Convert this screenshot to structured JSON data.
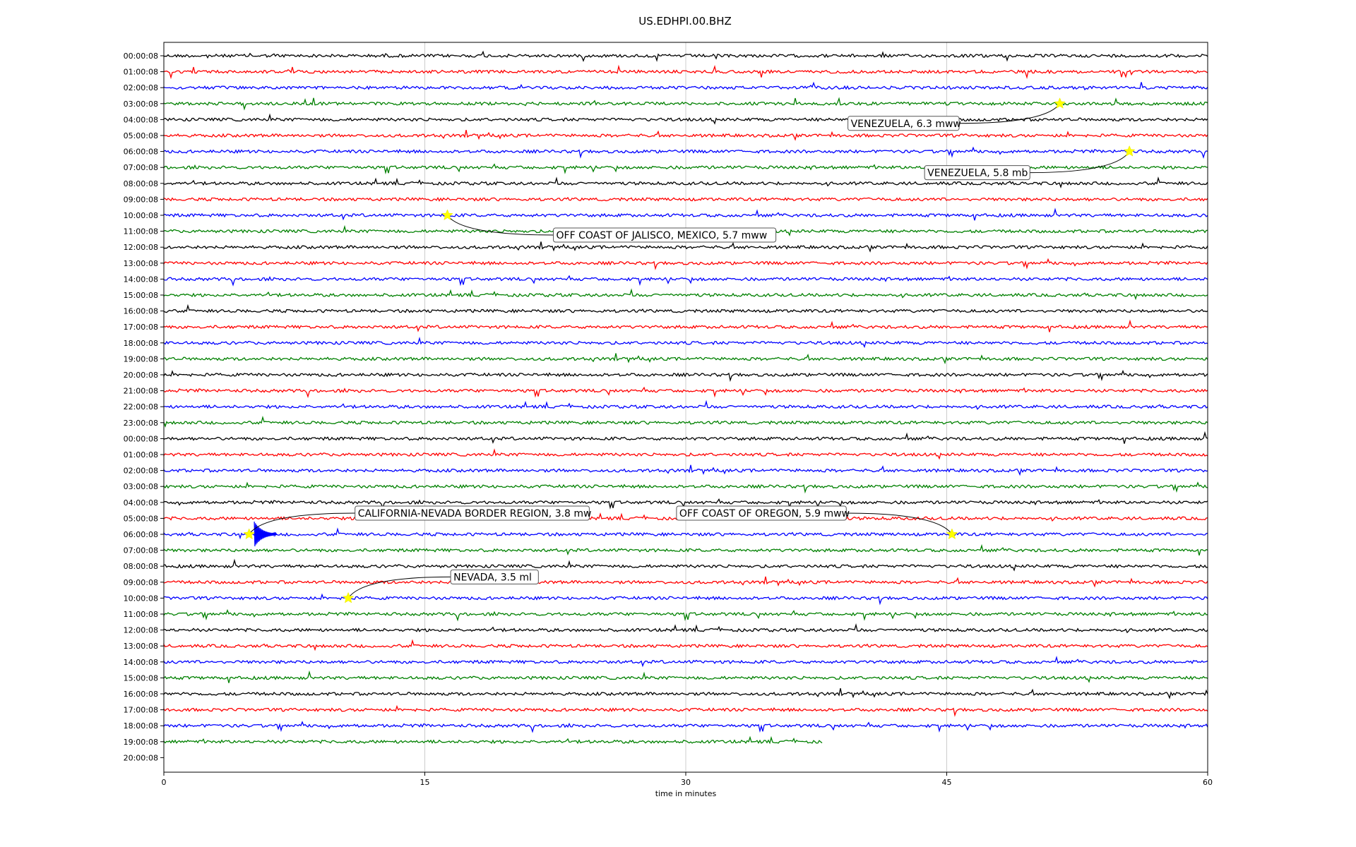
{
  "chart_data": {
    "type": "line",
    "title": "US.EDHPI.00.BHZ",
    "xlabel": "time in minutes",
    "ylabel": "",
    "xlim": [
      0,
      60
    ],
    "xticks": [
      0,
      15,
      30,
      45,
      60
    ],
    "xtick_labels": [
      "0",
      "15",
      "30",
      "45",
      "60"
    ],
    "grid": "vertical lines at 15, 30, 45",
    "trace_colors": [
      "#000000",
      "#ff0000",
      "#0000ff",
      "#008000"
    ],
    "rows": [
      {
        "label": "00:00:08",
        "end_minute": 60
      },
      {
        "label": "01:00:08",
        "end_minute": 60
      },
      {
        "label": "02:00:08",
        "end_minute": 60
      },
      {
        "label": "03:00:08",
        "end_minute": 60
      },
      {
        "label": "04:00:08",
        "end_minute": 60
      },
      {
        "label": "05:00:08",
        "end_minute": 60
      },
      {
        "label": "06:00:08",
        "end_minute": 60
      },
      {
        "label": "07:00:08",
        "end_minute": 60
      },
      {
        "label": "08:00:08",
        "end_minute": 60
      },
      {
        "label": "09:00:08",
        "end_minute": 60
      },
      {
        "label": "10:00:08",
        "end_minute": 60
      },
      {
        "label": "11:00:08",
        "end_minute": 60
      },
      {
        "label": "12:00:08",
        "end_minute": 60
      },
      {
        "label": "13:00:08",
        "end_minute": 60
      },
      {
        "label": "14:00:08",
        "end_minute": 60
      },
      {
        "label": "15:00:08",
        "end_minute": 60
      },
      {
        "label": "16:00:08",
        "end_minute": 60
      },
      {
        "label": "17:00:08",
        "end_minute": 60
      },
      {
        "label": "18:00:08",
        "end_minute": 60
      },
      {
        "label": "19:00:08",
        "end_minute": 60
      },
      {
        "label": "20:00:08",
        "end_minute": 60
      },
      {
        "label": "21:00:08",
        "end_minute": 60
      },
      {
        "label": "22:00:08",
        "end_minute": 60
      },
      {
        "label": "23:00:08",
        "end_minute": 60
      },
      {
        "label": "00:00:08",
        "end_minute": 60
      },
      {
        "label": "01:00:08",
        "end_minute": 60
      },
      {
        "label": "02:00:08",
        "end_minute": 60
      },
      {
        "label": "03:00:08",
        "end_minute": 60
      },
      {
        "label": "04:00:08",
        "end_minute": 60
      },
      {
        "label": "05:00:08",
        "end_minute": 60
      },
      {
        "label": "06:00:08",
        "end_minute": 60
      },
      {
        "label": "07:00:08",
        "end_minute": 60
      },
      {
        "label": "08:00:08",
        "end_minute": 60
      },
      {
        "label": "09:00:08",
        "end_minute": 60
      },
      {
        "label": "10:00:08",
        "end_minute": 60
      },
      {
        "label": "11:00:08",
        "end_minute": 60
      },
      {
        "label": "12:00:08",
        "end_minute": 60
      },
      {
        "label": "13:00:08",
        "end_minute": 60
      },
      {
        "label": "14:00:08",
        "end_minute": 60
      },
      {
        "label": "15:00:08",
        "end_minute": 60
      },
      {
        "label": "16:00:08",
        "end_minute": 60
      },
      {
        "label": "17:00:08",
        "end_minute": 60
      },
      {
        "label": "18:00:08",
        "end_minute": 60
      },
      {
        "label": "19:00:08",
        "end_minute": 37.9
      },
      {
        "label": "20:00:08",
        "end_minute": 0
      }
    ],
    "events": [
      {
        "label": "VENEZUELA, 6.3 mww",
        "row": 3,
        "minute": 51.5
      },
      {
        "label": "VENEZUELA, 5.8 mb",
        "row": 6,
        "minute": 55.5
      },
      {
        "label": "OFF COAST OF JALISCO, MEXICO, 5.7 mww",
        "row": 10,
        "minute": 16.3
      },
      {
        "label": "CALIFORNIA-NEVADA BORDER REGION, 3.8 mw",
        "row": 30,
        "minute": 4.9
      },
      {
        "label": "OFF COAST OF OREGON, 5.9 mww",
        "row": 30,
        "minute": 45.3
      },
      {
        "label": "NEVADA, 3.5 ml",
        "row": 34,
        "minute": 10.6
      }
    ]
  }
}
